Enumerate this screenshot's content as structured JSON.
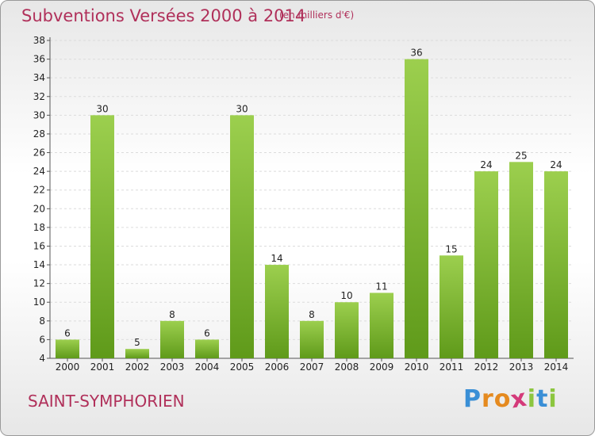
{
  "header": {
    "title": "Subventions Versées 2000 à 2014",
    "subtitle": "(en milliers d'€)"
  },
  "footer": {
    "commune": "SAINT-SYMPHORIEN",
    "logo_letters": [
      "P",
      "r",
      "o",
      "x",
      "i",
      "t",
      "i"
    ],
    "logo_colors": [
      "#3a8fd6",
      "#e58a1f",
      "#e58a1f",
      "#d43a7a",
      "#8cc63f",
      "#3a8fd6",
      "#8cc63f"
    ]
  },
  "chart_data": {
    "type": "bar",
    "title": "Subventions Versées 2000 à 2014",
    "subtitle": "(en milliers d'€)",
    "xlabel": "",
    "ylabel": "",
    "categories": [
      "2000",
      "2001",
      "2002",
      "2003",
      "2004",
      "2005",
      "2006",
      "2007",
      "2008",
      "2009",
      "2010",
      "2011",
      "2012",
      "2013",
      "2014"
    ],
    "values": [
      6,
      30,
      5,
      8,
      6,
      30,
      14,
      8,
      10,
      11,
      36,
      15,
      24,
      25,
      24
    ],
    "ylim": [
      4,
      38
    ],
    "yticks": [
      4,
      6,
      8,
      10,
      12,
      14,
      16,
      18,
      20,
      22,
      24,
      26,
      28,
      30,
      32,
      34,
      36,
      38
    ],
    "grid": true,
    "bar_color_top": "#9ccf4e",
    "bar_color_bottom": "#5f9a1a"
  }
}
